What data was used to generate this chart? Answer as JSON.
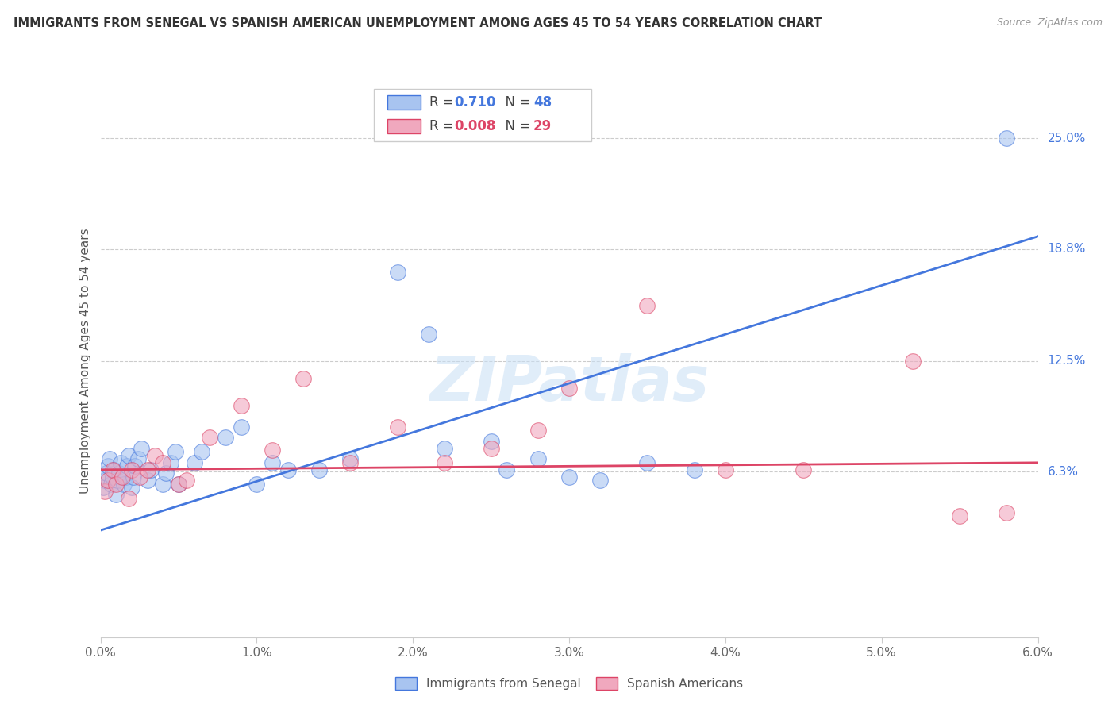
{
  "title": "IMMIGRANTS FROM SENEGAL VS SPANISH AMERICAN UNEMPLOYMENT AMONG AGES 45 TO 54 YEARS CORRELATION CHART",
  "source": "Source: ZipAtlas.com",
  "ylabel": "Unemployment Among Ages 45 to 54 years",
  "legend_label1": "Immigrants from Senegal",
  "legend_label2": "Spanish Americans",
  "R1": "0.710",
  "N1": "48",
  "R2": "0.008",
  "N2": "29",
  "xlim": [
    0.0,
    0.06
  ],
  "ylim": [
    -0.03,
    0.28
  ],
  "xticks": [
    0.0,
    0.01,
    0.02,
    0.03,
    0.04,
    0.05,
    0.06
  ],
  "xticklabels": [
    "0.0%",
    "1.0%",
    "2.0%",
    "3.0%",
    "4.0%",
    "5.0%",
    "6.0%"
  ],
  "yticks_right": [
    0.063,
    0.125,
    0.188,
    0.25
  ],
  "ytick_right_labels": [
    "6.3%",
    "12.5%",
    "18.8%",
    "25.0%"
  ],
  "watermark": "ZIPatlas",
  "color_blue": "#a8c4f0",
  "color_pink": "#f0a8be",
  "color_line_blue": "#4477dd",
  "color_line_pink": "#dd4466",
  "blue_x": [
    0.0002,
    0.0003,
    0.0004,
    0.0005,
    0.0006,
    0.0007,
    0.0008,
    0.0009,
    0.001,
    0.0011,
    0.0012,
    0.0013,
    0.0015,
    0.0016,
    0.0017,
    0.0018,
    0.002,
    0.0021,
    0.0022,
    0.0024,
    0.0026,
    0.003,
    0.0032,
    0.004,
    0.0042,
    0.0045,
    0.0048,
    0.005,
    0.006,
    0.0065,
    0.008,
    0.009,
    0.01,
    0.011,
    0.012,
    0.014,
    0.016,
    0.019,
    0.021,
    0.022,
    0.025,
    0.026,
    0.028,
    0.03,
    0.032,
    0.035,
    0.038,
    0.058
  ],
  "blue_y": [
    0.054,
    0.058,
    0.062,
    0.066,
    0.07,
    0.056,
    0.06,
    0.064,
    0.05,
    0.058,
    0.062,
    0.068,
    0.056,
    0.06,
    0.066,
    0.072,
    0.054,
    0.06,
    0.066,
    0.07,
    0.076,
    0.058,
    0.064,
    0.056,
    0.062,
    0.068,
    0.074,
    0.056,
    0.068,
    0.074,
    0.082,
    0.088,
    0.056,
    0.068,
    0.064,
    0.064,
    0.07,
    0.175,
    0.14,
    0.076,
    0.08,
    0.064,
    0.07,
    0.06,
    0.058,
    0.068,
    0.064,
    0.25
  ],
  "pink_x": [
    0.0003,
    0.0005,
    0.0008,
    0.001,
    0.0014,
    0.0018,
    0.002,
    0.0025,
    0.003,
    0.0035,
    0.004,
    0.005,
    0.0055,
    0.007,
    0.009,
    0.011,
    0.013,
    0.016,
    0.019,
    0.022,
    0.025,
    0.028,
    0.03,
    0.035,
    0.04,
    0.045,
    0.052,
    0.055,
    0.058
  ],
  "pink_y": [
    0.052,
    0.058,
    0.064,
    0.056,
    0.06,
    0.048,
    0.064,
    0.06,
    0.064,
    0.072,
    0.068,
    0.056,
    0.058,
    0.082,
    0.1,
    0.075,
    0.115,
    0.068,
    0.088,
    0.068,
    0.076,
    0.086,
    0.11,
    0.156,
    0.064,
    0.064,
    0.125,
    0.038,
    0.04
  ],
  "blue_line_x": [
    0.0,
    0.06
  ],
  "blue_line_y": [
    0.03,
    0.195
  ],
  "pink_line_x": [
    0.0,
    0.06
  ],
  "pink_line_y": [
    0.064,
    0.068
  ]
}
